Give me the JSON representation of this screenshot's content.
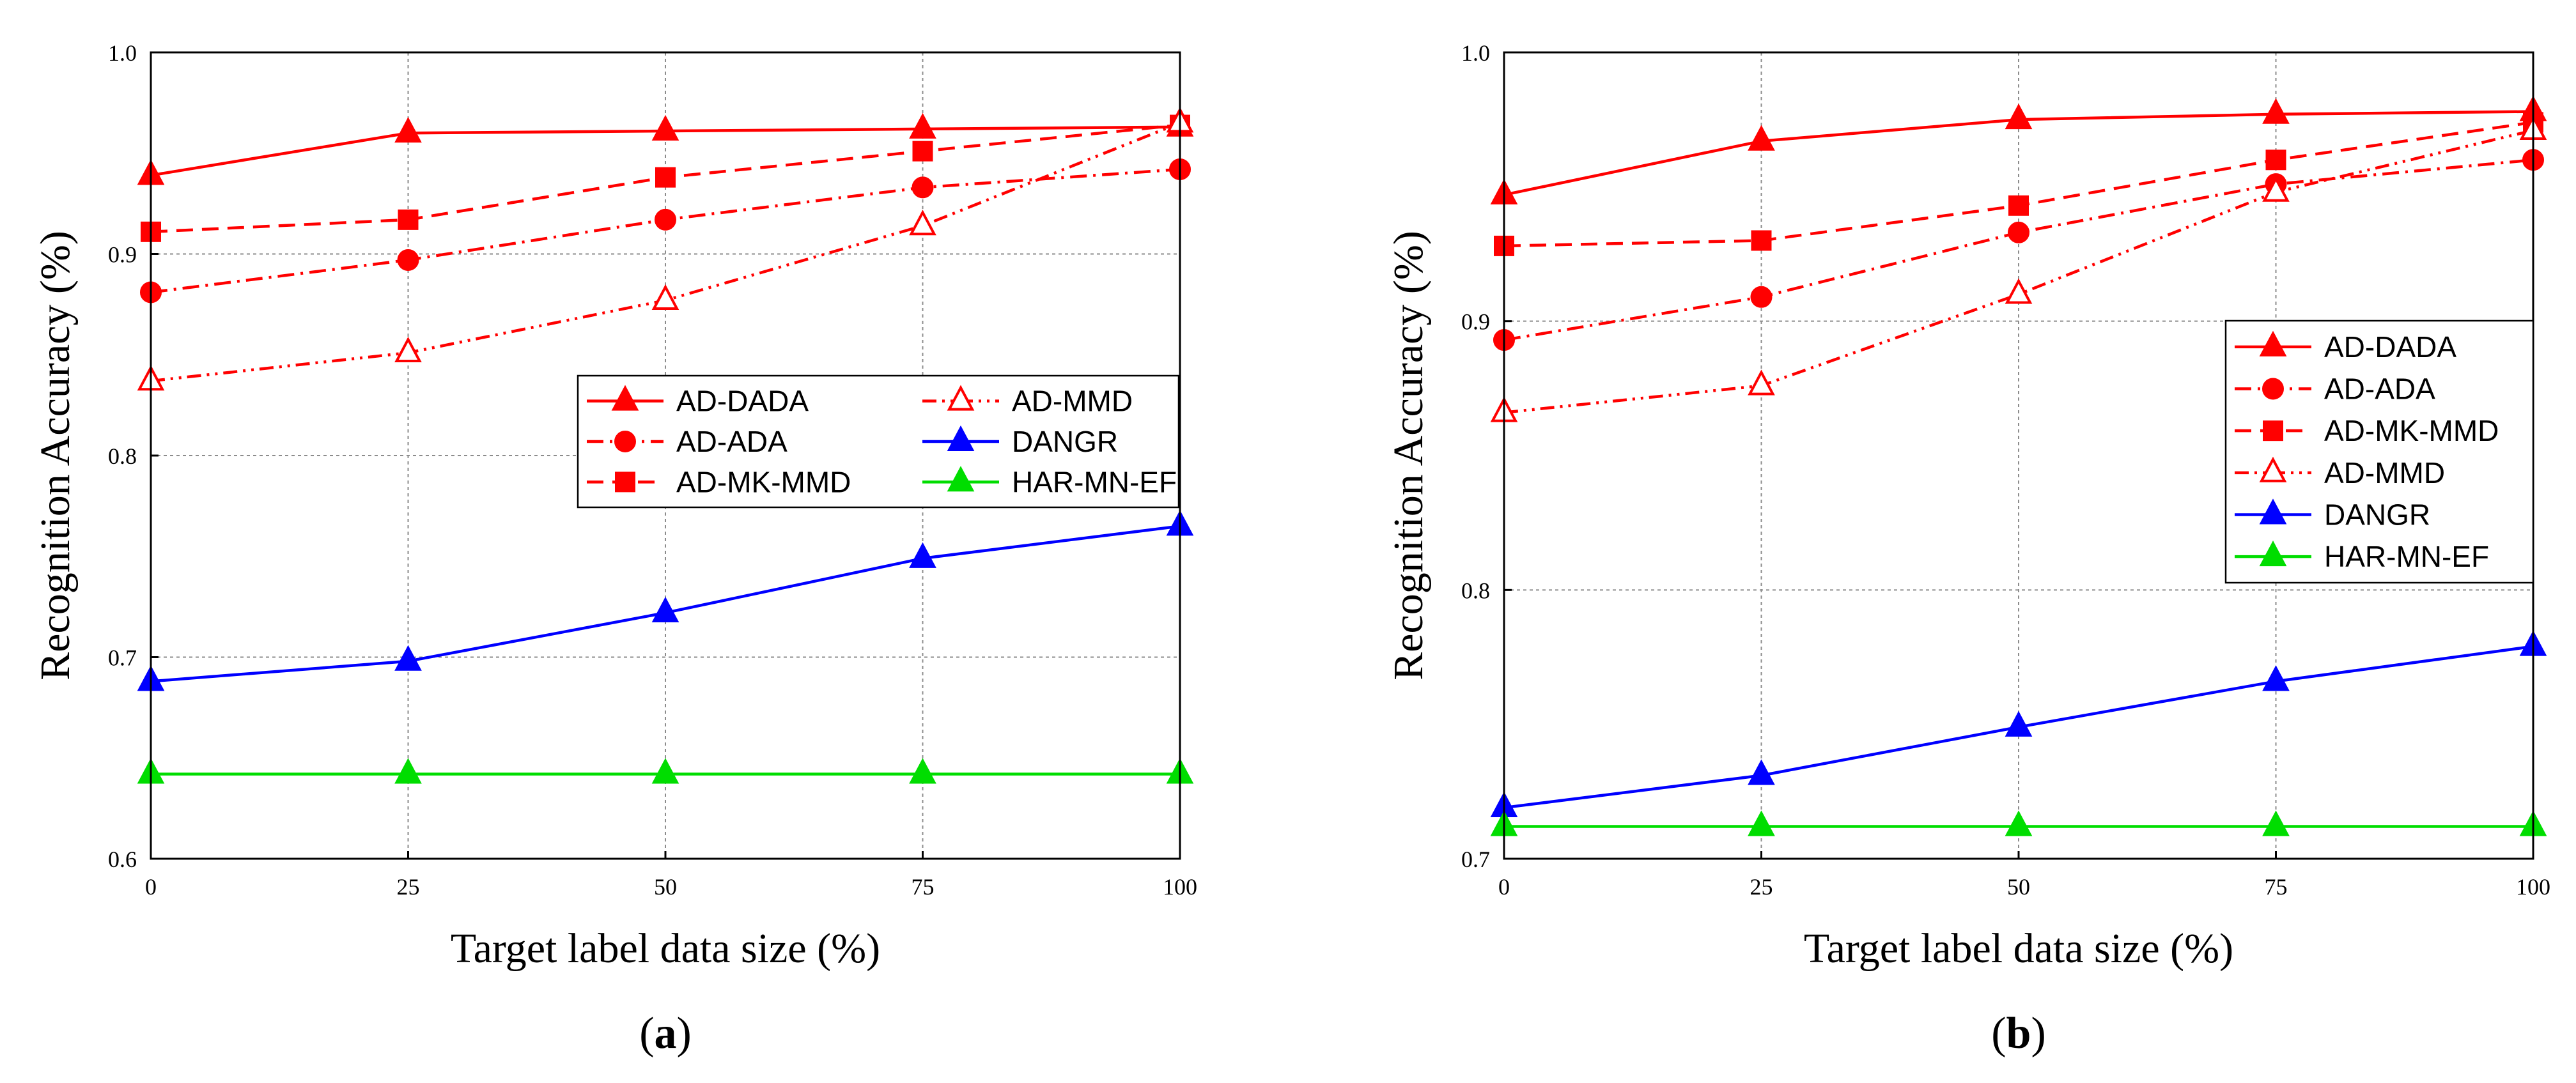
{
  "colors": {
    "red": "#ff0000",
    "blue": "#0000ff",
    "green": "#00dd00"
  },
  "chart_data": [
    {
      "type": "line",
      "panel_label": "a",
      "xlabel": "Target label data size (%)",
      "ylabel": "Recognition Accuracy (%)",
      "x": [
        0,
        25,
        50,
        75,
        100
      ],
      "xlim": [
        0,
        100
      ],
      "ylim": [
        0.6,
        1.0
      ],
      "xticks": [
        "0",
        "25",
        "50",
        "75",
        "100"
      ],
      "yticks": [
        "0.6",
        "0.7",
        "0.8",
        "0.9",
        "1.0"
      ],
      "grid": true,
      "legend_position": "center-right, two columns",
      "series": [
        {
          "name": "AD-DADA",
          "values": [
            0.939,
            0.96,
            0.961,
            0.962,
            0.963
          ],
          "color": "red",
          "dash": "solid",
          "marker": "triangle",
          "filled": true
        },
        {
          "name": "AD-ADA",
          "values": [
            0.881,
            0.897,
            0.917,
            0.933,
            0.942
          ],
          "color": "red",
          "dash": "dashdot",
          "marker": "circle",
          "filled": true
        },
        {
          "name": "AD-MK-MMD",
          "values": [
            0.911,
            0.917,
            0.938,
            0.951,
            0.964
          ],
          "color": "red",
          "dash": "dashed",
          "marker": "square",
          "filled": true
        },
        {
          "name": "AD-MMD",
          "values": [
            0.837,
            0.851,
            0.877,
            0.914,
            0.965
          ],
          "color": "red",
          "dash": "dashdotdot",
          "marker": "triangle",
          "filled": false
        },
        {
          "name": "DANGR",
          "values": [
            0.688,
            0.698,
            0.722,
            0.749,
            0.765
          ],
          "color": "blue",
          "dash": "solid",
          "marker": "triangle",
          "filled": true
        },
        {
          "name": "HAR-MN-EF",
          "values": [
            0.642,
            0.642,
            0.642,
            0.642,
            0.642
          ],
          "color": "green",
          "dash": "solid",
          "marker": "triangle",
          "filled": true
        }
      ],
      "legend_order": [
        "AD-DADA",
        "AD-MMD",
        "AD-ADA",
        "DANGR",
        "AD-MK-MMD",
        "HAR-MN-EF"
      ]
    },
    {
      "type": "line",
      "panel_label": "b",
      "xlabel": "Target label data size (%)",
      "ylabel": "Recognition Accuracy (%)",
      "x": [
        0,
        25,
        50,
        75,
        100
      ],
      "xlim": [
        0,
        100
      ],
      "ylim": [
        0.7,
        1.0
      ],
      "xticks": [
        "0",
        "25",
        "50",
        "75",
        "100"
      ],
      "yticks": [
        "0.7",
        "0.8",
        "0.9",
        "1.0"
      ],
      "grid": true,
      "legend_position": "center-right, one column",
      "series": [
        {
          "name": "AD-DADA",
          "values": [
            0.947,
            0.967,
            0.975,
            0.977,
            0.978
          ],
          "color": "red",
          "dash": "solid",
          "marker": "triangle",
          "filled": true
        },
        {
          "name": "AD-ADA",
          "values": [
            0.893,
            0.909,
            0.933,
            0.951,
            0.96
          ],
          "color": "red",
          "dash": "dashdot",
          "marker": "circle",
          "filled": true
        },
        {
          "name": "AD-MK-MMD",
          "values": [
            0.928,
            0.93,
            0.943,
            0.96,
            0.974
          ],
          "color": "red",
          "dash": "dashed",
          "marker": "square",
          "filled": true
        },
        {
          "name": "AD-MMD",
          "values": [
            0.866,
            0.876,
            0.91,
            0.948,
            0.971
          ],
          "color": "red",
          "dash": "dashdotdot",
          "marker": "triangle",
          "filled": false
        },
        {
          "name": "DANGR",
          "values": [
            0.719,
            0.731,
            0.749,
            0.766,
            0.779
          ],
          "color": "blue",
          "dash": "solid",
          "marker": "triangle",
          "filled": true
        },
        {
          "name": "HAR-MN-EF",
          "values": [
            0.712,
            0.712,
            0.712,
            0.712,
            0.712
          ],
          "color": "green",
          "dash": "solid",
          "marker": "triangle",
          "filled": true
        }
      ],
      "legend_order": [
        "AD-DADA",
        "AD-ADA",
        "AD-MK-MMD",
        "AD-MMD",
        "DANGR",
        "HAR-MN-EF"
      ]
    }
  ]
}
